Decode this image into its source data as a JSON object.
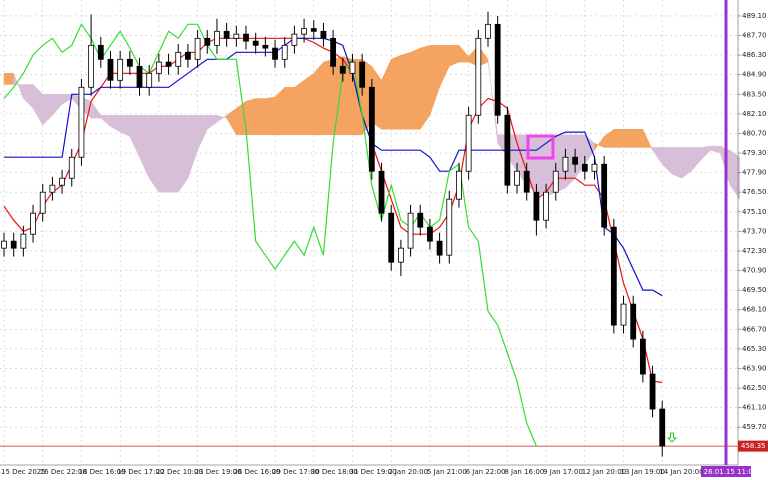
{
  "chart_data": {
    "type": "candlestick",
    "ylim": [
      457.0,
      490.24
    ],
    "yticks": [
      {
        "value": 489.1,
        "label": "489.10"
      },
      {
        "value": 487.7,
        "label": "487.70"
      },
      {
        "value": 486.3,
        "label": "486.30"
      },
      {
        "value": 484.9,
        "label": "484.90"
      },
      {
        "value": 483.5,
        "label": "483.50"
      },
      {
        "value": 482.1,
        "label": "482.10"
      },
      {
        "value": 480.7,
        "label": "480.70"
      },
      {
        "value": 479.3,
        "label": "479.30"
      },
      {
        "value": 477.9,
        "label": "477.90"
      },
      {
        "value": 476.5,
        "label": "476.50"
      },
      {
        "value": 475.1,
        "label": "475.10"
      },
      {
        "value": 473.7,
        "label": "473.70"
      },
      {
        "value": 472.3,
        "label": "472.30"
      },
      {
        "value": 470.9,
        "label": "470.90"
      },
      {
        "value": 469.5,
        "label": "469.50"
      },
      {
        "value": 468.1,
        "label": "468.10"
      },
      {
        "value": 466.7,
        "label": "466.70"
      },
      {
        "value": 465.3,
        "label": "465.30"
      },
      {
        "value": 463.9,
        "label": "463.90"
      },
      {
        "value": 462.5,
        "label": "462.50"
      },
      {
        "value": 461.1,
        "label": "461.10"
      },
      {
        "value": 459.7,
        "label": "459.70"
      }
    ],
    "grid": true,
    "categories": [
      "15 Dec 2025",
      null,
      null,
      null,
      "16 Dec 22:00",
      null,
      null,
      null,
      "18 Dec 16:00",
      null,
      null,
      null,
      "19 Dec 17:00",
      null,
      null,
      null,
      "22 Dec 10:00",
      null,
      null,
      null,
      "23 Dec 19:00",
      null,
      null,
      null,
      "26 Dec 16:00",
      null,
      null,
      null,
      "29 Dec 17:00",
      null,
      null,
      null,
      "30 Dec 18:00",
      null,
      null,
      null,
      "31 Dec 19:00",
      null,
      null,
      null,
      "2 Jan 20:00",
      null,
      null,
      null,
      "5 Jan 21:00",
      null,
      null,
      null,
      "6 Jan 22:00",
      null,
      null,
      null,
      "8 Jan 16:00",
      null,
      null,
      null,
      "9 Jan 17:00",
      null,
      null,
      null,
      "12 Jan 20:00",
      null,
      null,
      null,
      "13 Jan 19:00",
      null,
      null,
      null,
      "14 Jan 20:00",
      null,
      null,
      null,
      null,
      null,
      null,
      null,
      null
    ],
    "candles": {
      "up_color": "#ffffff",
      "down_color": "#000000",
      "open": [
        472.5,
        473.0,
        472.5,
        473.5,
        475.0,
        476.5,
        477.0,
        477.5,
        479.0,
        484.0,
        487.0,
        486.0,
        484.5,
        486.0,
        485.5,
        484.0,
        485.0,
        485.8,
        485.5,
        486.5,
        486.0,
        487.5,
        487.0,
        488.0,
        487.5,
        487.8,
        487.3,
        487.0,
        486.8,
        486.0,
        487.0,
        487.8,
        488.2,
        488.0,
        487.5,
        485.5,
        485.0,
        485.8,
        484.0,
        478.0,
        475.0,
        471.5,
        472.5,
        475.0,
        474.0,
        473.0,
        472.0,
        476.0,
        478.0,
        482.0,
        487.5,
        488.5,
        482.0,
        477.0,
        478.0,
        476.5,
        474.5,
        476.5,
        478.0,
        479.0,
        478.5,
        478.0,
        478.5,
        474.0,
        467.0,
        468.5,
        466.0,
        463.5,
        461.0,
        null,
        null,
        null,
        null,
        null,
        null,
        null,
        null
      ],
      "high": [
        473.6,
        473.6,
        474.1,
        475.6,
        477.1,
        477.6,
        478.1,
        479.6,
        484.6,
        489.2,
        487.6,
        486.6,
        486.6,
        486.6,
        486.1,
        485.6,
        486.4,
        486.4,
        487.1,
        487.1,
        488.1,
        488.1,
        488.9,
        488.6,
        488.4,
        488.4,
        487.9,
        487.6,
        487.4,
        487.6,
        488.4,
        488.9,
        488.8,
        488.6,
        488.1,
        486.1,
        486.4,
        486.4,
        484.6,
        478.6,
        475.6,
        473.1,
        475.6,
        475.6,
        474.6,
        473.6,
        476.6,
        478.6,
        482.6,
        488.1,
        489.4,
        489.1,
        482.6,
        478.6,
        478.6,
        477.1,
        477.1,
        478.6,
        479.6,
        479.6,
        479.1,
        479.1,
        479.1,
        474.6,
        469.1,
        469.1,
        466.6,
        464.1,
        461.6,
        null,
        null,
        null,
        null,
        null,
        null,
        null,
        null
      ],
      "low": [
        471.9,
        471.9,
        471.9,
        472.9,
        474.4,
        475.9,
        476.4,
        476.9,
        478.4,
        483.4,
        485.4,
        483.9,
        483.9,
        484.9,
        483.4,
        483.4,
        484.4,
        484.9,
        484.9,
        485.4,
        485.4,
        486.4,
        486.4,
        486.9,
        486.9,
        486.7,
        486.4,
        486.2,
        485.4,
        485.4,
        486.4,
        487.2,
        487.4,
        486.9,
        484.9,
        484.4,
        484.4,
        483.4,
        477.4,
        474.4,
        470.9,
        470.5,
        471.9,
        473.4,
        472.4,
        471.4,
        471.4,
        475.4,
        477.4,
        481.4,
        486.9,
        481.4,
        476.4,
        476.4,
        475.9,
        473.4,
        473.9,
        475.9,
        477.4,
        477.9,
        477.4,
        477.4,
        473.4,
        466.4,
        466.4,
        465.4,
        462.9,
        460.4,
        457.6,
        null,
        null,
        null,
        null,
        null,
        null,
        null,
        null
      ],
      "close": [
        473.0,
        472.5,
        473.5,
        475.0,
        476.5,
        477.0,
        477.5,
        479.0,
        484.0,
        487.0,
        486.0,
        484.5,
        486.0,
        485.5,
        484.0,
        485.0,
        485.8,
        485.5,
        486.5,
        486.0,
        487.5,
        487.0,
        488.0,
        487.5,
        487.8,
        487.3,
        487.0,
        486.8,
        486.0,
        487.0,
        487.8,
        488.2,
        488.0,
        487.5,
        485.5,
        485.0,
        485.8,
        484.0,
        478.0,
        475.0,
        471.5,
        472.5,
        475.0,
        474.0,
        473.0,
        472.0,
        476.0,
        478.0,
        482.0,
        487.5,
        488.5,
        482.0,
        477.0,
        478.0,
        476.5,
        474.5,
        476.5,
        478.0,
        479.0,
        478.5,
        478.0,
        478.5,
        474.0,
        467.0,
        468.5,
        466.0,
        463.5,
        461.0,
        458.35,
        null,
        null,
        null,
        null,
        null,
        null,
        null,
        null
      ]
    },
    "cloud": {
      "up_color": "#f4a460",
      "down_color": "#d8bfd8",
      "span_a": [
        485.0,
        485.0,
        483.2,
        482.5,
        481.3,
        482.0,
        482.8,
        483.2,
        482.4,
        481.8,
        481.8,
        481.2,
        480.8,
        480.5,
        479.0,
        477.5,
        476.5,
        476.5,
        476.5,
        477.5,
        479.5,
        481.0,
        481.5,
        482.0,
        482.5,
        483.0,
        483.2,
        483.2,
        483.3,
        484.0,
        484.0,
        484.5,
        485.0,
        485.8,
        486.0,
        486.2,
        486.0,
        486.0,
        485.5,
        484.5,
        486.0,
        486.3,
        486.5,
        486.8,
        487.0,
        487.0,
        487.0,
        487.0,
        486.2,
        487.0,
        486.0,
        480.0,
        479.0,
        478.0,
        477.0,
        476.5,
        476.2,
        476.5,
        476.8,
        477.5,
        478.5,
        479.5,
        480.5,
        481.0,
        481.0,
        481.0,
        481.0,
        479.5,
        478.5,
        477.8,
        477.5,
        478.0,
        478.8,
        479.5,
        479.3,
        477.0,
        476.0
      ],
      "span_b": [
        484.2,
        484.2,
        484.2,
        484.2,
        483.5,
        483.5,
        483.5,
        483.5,
        483.3,
        483.0,
        482.0,
        482.0,
        482.0,
        482.0,
        482.0,
        482.0,
        482.0,
        482.0,
        482.0,
        482.0,
        482.0,
        482.0,
        482.0,
        481.8,
        480.6,
        480.6,
        480.6,
        480.6,
        480.6,
        480.6,
        480.6,
        480.6,
        480.6,
        480.6,
        480.6,
        480.6,
        480.6,
        480.6,
        481.5,
        481.0,
        481.0,
        481.0,
        481.0,
        481.0,
        482.0,
        484.0,
        485.5,
        485.8,
        485.8,
        485.5,
        485.8,
        480.6,
        480.6,
        480.6,
        480.6,
        480.6,
        480.6,
        480.6,
        480.6,
        480.6,
        480.6,
        480.0,
        479.7,
        479.7,
        479.7,
        479.7,
        479.7,
        479.7,
        479.7,
        479.7,
        479.7,
        479.7,
        479.7,
        479.8,
        479.8,
        479.5,
        479.0
      ]
    },
    "lines": [
      {
        "color": "#ee1111",
        "values": [
          475.5,
          474.5,
          473.7,
          474.0,
          475.5,
          476.5,
          477.0,
          478.5,
          480.0,
          483.0,
          484.0,
          485.0,
          485.0,
          485.0,
          485.0,
          485.0,
          485.5,
          485.5,
          486.0,
          486.5,
          486.5,
          487.2,
          487.5,
          487.5,
          487.5,
          487.5,
          487.5,
          487.5,
          487.5,
          487.5,
          487.5,
          487.5,
          487.2,
          486.8,
          486.5,
          486.0,
          485.0,
          482.0,
          480.0,
          478.0,
          476.0,
          474.0,
          473.5,
          473.5,
          473.5,
          474.0,
          475.0,
          477.0,
          481.0,
          482.5,
          483.2,
          483.0,
          482.5,
          480.0,
          478.0,
          476.0,
          476.5,
          477.5,
          477.5,
          477.5,
          477.0,
          477.0,
          476.0,
          473.0,
          470.0,
          468.0,
          466.0,
          463.0,
          462.9,
          null,
          null,
          null,
          null,
          null,
          null,
          null,
          null
        ]
      },
      {
        "color": "#1010cc",
        "values": [
          479.0,
          479.0,
          479.0,
          479.0,
          479.0,
          479.0,
          479.0,
          483.5,
          483.5,
          483.5,
          484.0,
          484.0,
          484.0,
          484.0,
          484.0,
          484.0,
          484.0,
          484.0,
          484.5,
          485.0,
          485.5,
          486.0,
          486.0,
          486.0,
          486.5,
          486.5,
          486.5,
          486.5,
          486.5,
          487.0,
          487.5,
          487.5,
          487.5,
          487.5,
          487.3,
          487.0,
          485.0,
          482.0,
          480.0,
          479.5,
          479.5,
          479.5,
          479.5,
          479.5,
          479.0,
          478.0,
          478.0,
          479.5,
          479.5,
          479.5,
          479.5,
          479.5,
          479.5,
          479.5,
          479.5,
          479.5,
          480.0,
          480.5,
          480.8,
          480.8,
          480.8,
          479.0,
          474.0,
          473.5,
          472.5,
          471.0,
          469.5,
          469.5,
          469.1,
          null,
          null,
          null,
          null,
          null,
          null,
          null,
          null
        ]
      },
      {
        "color": "#33dd33",
        "values": [
          483.2,
          484.0,
          485.0,
          486.3,
          487.0,
          487.5,
          486.5,
          487.0,
          488.5,
          487.5,
          486.0,
          487.0,
          488.0,
          486.8,
          485.5,
          485.0,
          486.5,
          488.0,
          487.5,
          488.5,
          488.5,
          487.0,
          486.0,
          486.0,
          486.0,
          481.0,
          473.0,
          472.0,
          471.0,
          472.0,
          473.0,
          472.0,
          474.0,
          472.0,
          480.0,
          485.0,
          486.0,
          482.0,
          477.0,
          474.5,
          477.0,
          474.5,
          474.0,
          475.0,
          474.0,
          474.5,
          478.0,
          478.5,
          474.0,
          473.0,
          468.0,
          467.0,
          465.0,
          463.0,
          460.0,
          458.35,
          null,
          null,
          null,
          null,
          null,
          null,
          null,
          null,
          null,
          null,
          null,
          null,
          null,
          null,
          null,
          null,
          null,
          null,
          null,
          null,
          null
        ]
      }
    ],
    "current_price": 458.35,
    "time_marker": "2026.01.15 11:00"
  }
}
